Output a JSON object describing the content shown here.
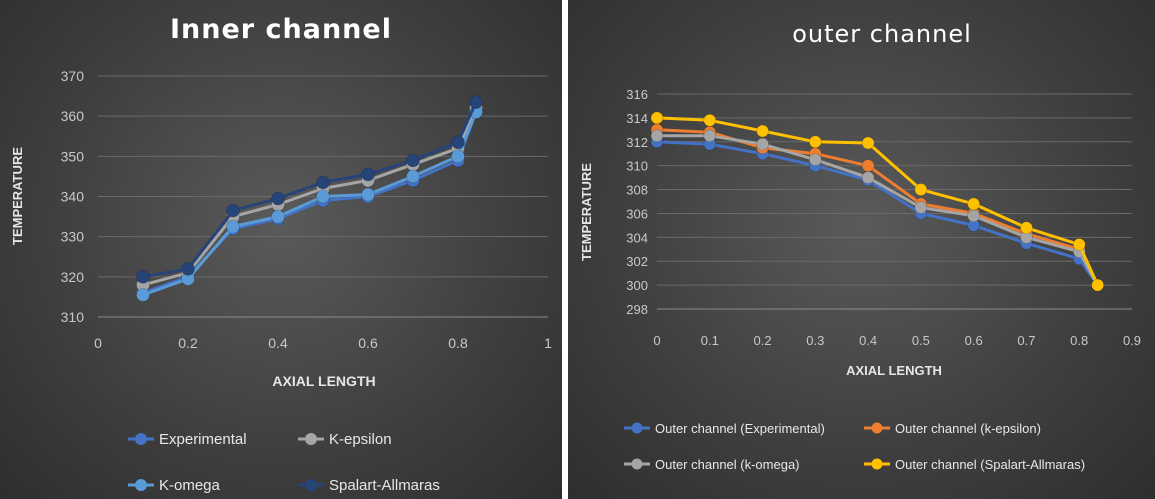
{
  "chart_data": [
    {
      "type": "line",
      "title": "Inner channel",
      "xlabel": "AXIAL LENGTH",
      "ylabel": "TEMPERATURE",
      "xlim": [
        0,
        1
      ],
      "ylim": [
        310,
        370
      ],
      "xticks": [
        "0",
        "0.2",
        "0.4",
        "0.6",
        "0.8",
        "1"
      ],
      "yticks": [
        "310",
        "320",
        "330",
        "340",
        "350",
        "360",
        "370"
      ],
      "grid": true,
      "legend_position": "bottom",
      "x": [
        0.1,
        0.2,
        0.3,
        0.4,
        0.5,
        0.6,
        0.7,
        0.8,
        0.84
      ],
      "series": [
        {
          "name": "Experimental",
          "color": "#4472c4",
          "values": [
            316,
            320,
            332,
            334.5,
            339,
            340,
            344,
            349,
            361
          ]
        },
        {
          "name": "K-epsilon",
          "color": "#a5a5a5",
          "values": [
            318,
            321,
            335,
            338,
            342,
            344,
            348,
            352,
            362
          ]
        },
        {
          "name": "K-omega",
          "color": "#5b9bd5",
          "values": [
            315.5,
            319.5,
            332.5,
            335,
            340,
            340.5,
            345,
            350,
            361
          ]
        },
        {
          "name": "Spalart-Allmaras",
          "color": "#264478",
          "values": [
            320,
            322,
            336.5,
            339.5,
            343.5,
            345.5,
            349,
            353.5,
            363.5
          ]
        }
      ]
    },
    {
      "type": "line",
      "title": "outer channel",
      "xlabel": "AXIAL LENGTH",
      "ylabel": "TEMPERATURE",
      "xlim": [
        0,
        0.9
      ],
      "ylim": [
        298,
        316
      ],
      "xticks": [
        "0",
        "0.1",
        "0.2",
        "0.3",
        "0.4",
        "0.5",
        "0.6",
        "0.7",
        "0.8",
        "0.9"
      ],
      "yticks": [
        "298",
        "300",
        "302",
        "304",
        "306",
        "308",
        "310",
        "312",
        "314",
        "316"
      ],
      "grid": true,
      "legend_position": "bottom",
      "x": [
        0,
        0.1,
        0.2,
        0.3,
        0.4,
        0.5,
        0.6,
        0.7,
        0.8,
        0.835
      ],
      "series": [
        {
          "name": "Outer channel (Experimental)",
          "color": "#4472c4",
          "values": [
            312,
            311.8,
            311,
            310,
            308.8,
            306,
            305,
            303.5,
            302.2,
            300
          ]
        },
        {
          "name": "Outer channel (k-epsilon)",
          "color": "#ed7d31",
          "values": [
            313,
            312.8,
            311.5,
            311,
            310,
            306.8,
            306,
            304.3,
            303,
            300
          ]
        },
        {
          "name": "Outer channel (k-omega)",
          "color": "#a5a5a5",
          "values": [
            312.5,
            312.5,
            311.8,
            310.5,
            309,
            306.5,
            305.8,
            304,
            302.8,
            300
          ]
        },
        {
          "name": "Outer channel (Spalart-Allmaras)",
          "color": "#ffc000",
          "values": [
            314,
            313.8,
            312.9,
            312,
            311.9,
            308,
            306.8,
            304.8,
            303.4,
            300
          ]
        }
      ]
    }
  ]
}
